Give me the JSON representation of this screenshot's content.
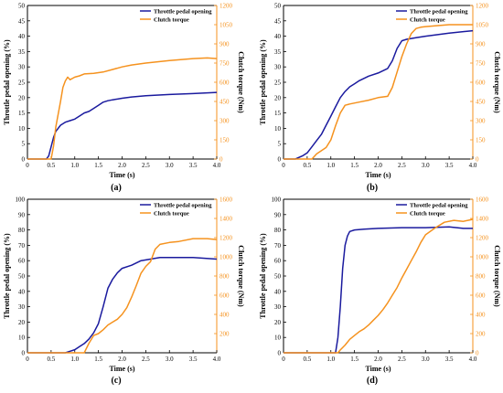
{
  "colors": {
    "throttle": "#1a1a9e",
    "clutch": "#f5921e",
    "axis": "#000000"
  },
  "chart_data": [
    {
      "type": "line",
      "panel": "(a)",
      "xlabel": "Time (s)",
      "ylabel": "Throttle pedal opening (%)",
      "y2label": "Clutch torque (Nm)",
      "xlim": [
        0,
        4.0
      ],
      "ylim": [
        0,
        50
      ],
      "y2lim": [
        0,
        1200
      ],
      "xticks": [
        "0",
        "0.5",
        "1.0",
        "1.5",
        "2.0",
        "2.5",
        "3.0",
        "3.5",
        "4.0"
      ],
      "yticks": [
        "0",
        "5",
        "10",
        "15",
        "20",
        "25",
        "30",
        "35",
        "40",
        "45",
        "50"
      ],
      "y2ticks": [
        "0",
        "150",
        "300",
        "450",
        "600",
        "750",
        "900",
        "1050",
        "1200"
      ],
      "legend_position": "top-right",
      "grid": false,
      "series": [
        {
          "name": "Throttle pedal opening",
          "axis": "left",
          "x": [
            0,
            0.4,
            0.45,
            0.5,
            0.55,
            0.6,
            0.7,
            0.8,
            0.9,
            1.0,
            1.1,
            1.2,
            1.3,
            1.4,
            1.5,
            1.6,
            1.7,
            1.8,
            2.0,
            2.2,
            2.5,
            3.0,
            3.5,
            4.0
          ],
          "y": [
            0,
            0,
            1,
            4,
            7,
            9,
            11,
            12,
            12.5,
            13,
            14,
            15,
            15.5,
            16.5,
            17.5,
            18.5,
            19,
            19.3,
            19.8,
            20.2,
            20.6,
            21,
            21.3,
            21.7
          ]
        },
        {
          "name": "Clutch torque",
          "axis": "right",
          "x": [
            0,
            0.5,
            0.55,
            0.6,
            0.65,
            0.7,
            0.75,
            0.8,
            0.85,
            0.9,
            1.0,
            1.1,
            1.2,
            1.4,
            1.6,
            1.8,
            2.0,
            2.2,
            2.5,
            3.0,
            3.5,
            3.8,
            4.0
          ],
          "y": [
            0,
            0,
            100,
            250,
            350,
            450,
            560,
            610,
            640,
            620,
            640,
            650,
            665,
            670,
            680,
            700,
            720,
            735,
            750,
            770,
            785,
            790,
            785
          ]
        }
      ]
    },
    {
      "type": "line",
      "panel": "(b)",
      "xlabel": "Time (s)",
      "ylabel": "Throttle pedal opening (%)",
      "y2label": "Clutch torque (Nm)",
      "xlim": [
        0,
        4.0
      ],
      "ylim": [
        0,
        50
      ],
      "y2lim": [
        0,
        1200
      ],
      "xticks": [
        "0",
        "0.5",
        "1.0",
        "1.5",
        "2.0",
        "2.5",
        "3.0",
        "3.5",
        "4.0"
      ],
      "yticks": [
        "0",
        "5",
        "10",
        "15",
        "20",
        "25",
        "30",
        "35",
        "40",
        "45",
        "50"
      ],
      "y2ticks": [
        "0",
        "150",
        "300",
        "450",
        "600",
        "750",
        "900",
        "1050",
        "1200"
      ],
      "legend_position": "top-right",
      "grid": false,
      "series": [
        {
          "name": "Throttle pedal opening",
          "axis": "left",
          "x": [
            0,
            0.25,
            0.4,
            0.5,
            0.6,
            0.7,
            0.8,
            0.9,
            1.0,
            1.1,
            1.2,
            1.3,
            1.4,
            1.5,
            1.6,
            1.8,
            2.0,
            2.2,
            2.3,
            2.4,
            2.5,
            2.6,
            2.8,
            3.0,
            3.5,
            4.0
          ],
          "y": [
            0,
            0,
            1,
            2,
            4,
            6,
            8,
            11,
            14,
            17,
            20,
            22,
            23.5,
            24.5,
            25.5,
            27,
            28,
            29.5,
            32,
            36,
            38.5,
            39,
            39.5,
            40,
            41,
            41.8
          ]
        },
        {
          "name": "Clutch torque",
          "axis": "right",
          "x": [
            0,
            0.6,
            0.7,
            0.9,
            1.0,
            1.1,
            1.2,
            1.3,
            1.4,
            1.6,
            1.8,
            2.0,
            2.2,
            2.3,
            2.4,
            2.5,
            2.6,
            2.7,
            2.8,
            2.9,
            3.0,
            3.5,
            4.0
          ],
          "y": [
            0,
            0,
            40,
            90,
            150,
            260,
            360,
            420,
            430,
            445,
            460,
            480,
            490,
            560,
            680,
            800,
            900,
            980,
            1020,
            1030,
            1035,
            1050,
            1050
          ]
        }
      ]
    },
    {
      "type": "line",
      "panel": "(c)",
      "xlabel": "Time (s)",
      "ylabel": "Throttle pedal opening (%)",
      "y2label": "Clutch torque (Nm)",
      "xlim": [
        0,
        4.0
      ],
      "ylim": [
        0,
        100
      ],
      "y2lim": [
        0,
        1600
      ],
      "xticks": [
        "0",
        "0.5",
        "1.0",
        "1.5",
        "2.0",
        "2.5",
        "3.0",
        "3.5",
        "4.0"
      ],
      "yticks": [
        "0",
        "10",
        "20",
        "30",
        "40",
        "50",
        "60",
        "70",
        "80",
        "90",
        "100"
      ],
      "y2ticks": [
        "200",
        "400",
        "600",
        "800",
        "1000",
        "1200",
        "1400",
        "1600"
      ],
      "legend_position": "top-right",
      "grid": false,
      "series": [
        {
          "name": "Throttle pedal opening",
          "axis": "left",
          "x": [
            0,
            0.8,
            0.9,
            1.0,
            1.1,
            1.2,
            1.3,
            1.4,
            1.5,
            1.6,
            1.7,
            1.8,
            1.9,
            2.0,
            2.2,
            2.4,
            2.6,
            2.8,
            3.0,
            3.5,
            4.0
          ],
          "y": [
            0,
            0,
            1,
            2,
            4,
            6,
            9,
            13,
            19,
            30,
            42,
            48,
            52,
            55,
            57,
            60,
            61,
            62,
            62,
            62,
            61
          ]
        },
        {
          "name": "Clutch torque",
          "axis": "right",
          "x": [
            0,
            1.2,
            1.3,
            1.4,
            1.5,
            1.6,
            1.7,
            1.8,
            1.9,
            2.0,
            2.1,
            2.2,
            2.3,
            2.4,
            2.5,
            2.6,
            2.7,
            2.8,
            3.0,
            3.2,
            3.5,
            3.8,
            4.0
          ],
          "y": [
            0,
            0,
            100,
            180,
            200,
            240,
            290,
            320,
            350,
            400,
            470,
            580,
            700,
            830,
            900,
            950,
            1080,
            1130,
            1150,
            1160,
            1190,
            1190,
            1180
          ]
        }
      ]
    },
    {
      "type": "line",
      "panel": "(d)",
      "xlabel": "Time (s)",
      "ylabel": "Throttle pedal opening (%)",
      "y2label": "Clutch torque (Nm)",
      "xlim": [
        0,
        4.0
      ],
      "ylim": [
        0,
        100
      ],
      "y2lim": [
        0,
        1600
      ],
      "xticks": [
        "0",
        "0.5",
        "1.0",
        "1.5",
        "2.0",
        "2.5",
        "3.0",
        "3.5",
        "4.0"
      ],
      "yticks": [
        "0",
        "10",
        "20",
        "30",
        "40",
        "50",
        "60",
        "70",
        "80",
        "90",
        "100"
      ],
      "y2ticks": [
        "0",
        "200",
        "400",
        "600",
        "800",
        "1000",
        "1200",
        "1400",
        "1600"
      ],
      "legend_position": "top-right",
      "grid": false,
      "series": [
        {
          "name": "Throttle pedal opening",
          "axis": "left",
          "x": [
            0,
            1.1,
            1.15,
            1.2,
            1.25,
            1.3,
            1.35,
            1.4,
            1.5,
            1.7,
            2.0,
            2.5,
            3.0,
            3.5,
            3.8,
            4.0
          ],
          "y": [
            0,
            0,
            10,
            30,
            55,
            70,
            76,
            79,
            80,
            80.5,
            81,
            81.5,
            81.5,
            82,
            81,
            81
          ]
        },
        {
          "name": "Clutch torque",
          "axis": "right",
          "x": [
            0,
            1.15,
            1.2,
            1.3,
            1.4,
            1.5,
            1.6,
            1.7,
            1.8,
            1.9,
            2.0,
            2.1,
            2.2,
            2.3,
            2.4,
            2.5,
            2.6,
            2.7,
            2.8,
            2.9,
            3.0,
            3.2,
            3.4,
            3.6,
            3.8,
            4.0
          ],
          "y": [
            0,
            0,
            30,
            80,
            140,
            180,
            220,
            250,
            290,
            340,
            390,
            450,
            520,
            600,
            680,
            780,
            870,
            960,
            1050,
            1150,
            1230,
            1300,
            1360,
            1380,
            1370,
            1390
          ]
        }
      ]
    }
  ]
}
